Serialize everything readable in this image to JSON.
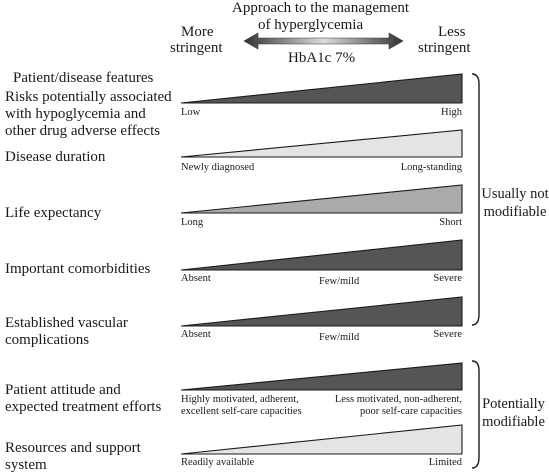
{
  "header": {
    "title_line1": "Approach to the management",
    "title_line2": "of hyperglycemia",
    "left_line1": "More",
    "left_line2": "stringent",
    "right_line1": "Less",
    "right_line2": "stringent",
    "center": "HbA1c 7%"
  },
  "colors": {
    "dark": "#555555",
    "light": "#e4e4e4",
    "medium": "#aaaaaa",
    "stroke": "#1a1a1a"
  },
  "section_title": "Patient/disease features",
  "rows": [
    {
      "lines": [
        "Risks potentially associated",
        "with hypoglycemia and",
        "other drug adverse effects"
      ],
      "fill": "dark",
      "left": [
        "Low"
      ],
      "mid": [],
      "right": [
        "High"
      ]
    },
    {
      "lines": [
        "Disease duration"
      ],
      "fill": "light",
      "left": [
        "Newly diagnosed"
      ],
      "mid": [],
      "right": [
        "Long-standing"
      ]
    },
    {
      "lines": [
        "Life expectancy"
      ],
      "fill": "medium",
      "left": [
        "Long"
      ],
      "mid": [],
      "right": [
        "Short"
      ]
    },
    {
      "lines": [
        "Important comorbidities"
      ],
      "fill": "dark",
      "left": [
        "Absent"
      ],
      "mid": [
        "Few/mild"
      ],
      "right": [
        "Severe"
      ]
    },
    {
      "lines": [
        "Established vascular",
        "complications"
      ],
      "fill": "dark",
      "left": [
        "Absent"
      ],
      "mid": [
        "Few/mild"
      ],
      "right": [
        "Severe"
      ]
    },
    {
      "lines": [
        "Patient attitude and",
        "expected treatment efforts"
      ],
      "fill": "dark",
      "left": [
        "Highly motivated, adherent,",
        "excellent self-care capacities"
      ],
      "mid": [],
      "right": [
        "Less motivated, non-adherent,",
        "poor self-care capacities"
      ]
    },
    {
      "lines": [
        "Resources and support",
        "system"
      ],
      "fill": "light",
      "left": [
        "Readily available"
      ],
      "mid": [],
      "right": [
        "Limited"
      ]
    }
  ],
  "brackets": [
    {
      "lines": [
        "Usually not",
        "modifiable"
      ]
    },
    {
      "lines": [
        "Potentially",
        "modifiable"
      ]
    }
  ]
}
